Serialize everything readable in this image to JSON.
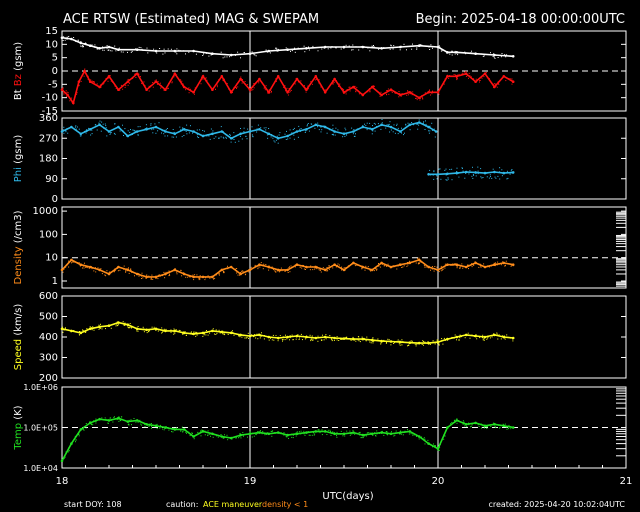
{
  "chart_data": {
    "type": "line",
    "title": "ACE RTSW (Estimated) MAG & SWEPAM",
    "begin_label": "Begin: 2025-04-18 00:00:00UTC",
    "xlabel": "UTC(days)",
    "x_ticks": [
      "18",
      "19",
      "20",
      "21"
    ],
    "xlim": [
      18,
      21
    ],
    "footer": {
      "start_doy": "start DOY: 108",
      "caution": "caution:",
      "ace_maneuver": "ACE maneuver",
      "density_note": "density < 1",
      "created": "created: 2025-04-20 10:02:04UTC"
    },
    "colors": {
      "bt": "#ffffff",
      "bz": "#ff1010",
      "phi": "#2fb8e8",
      "density": "#ff8c1a",
      "speed": "#ffff20",
      "temp": "#20e020",
      "maneuver": "#ffff20",
      "density_note": "#ff8c1a"
    },
    "panels": [
      {
        "key": "mag",
        "ylabel_parts": [
          {
            "text": "Bt",
            "color": "#ffffff"
          },
          {
            "text": " ",
            "color": "#ffffff"
          },
          {
            "text": "Bz",
            "color": "#ff1010"
          },
          {
            "text": " (gsm)",
            "color": "#ffffff"
          }
        ],
        "ylim": [
          -15,
          15
        ],
        "scale": "linear",
        "tick_labels": [
          "15",
          "10",
          "5",
          "0",
          "-5",
          "-10",
          "-15"
        ],
        "tick_values": [
          15,
          10,
          5,
          0,
          -5,
          -10,
          -15
        ],
        "dashed_ref": 0,
        "series": [
          {
            "name": "Bt",
            "color": "#ffffff",
            "x": [
              18.0,
              18.05,
              18.1,
              18.15,
              18.2,
              18.25,
              18.3,
              18.4,
              18.5,
              18.6,
              18.7,
              18.8,
              18.9,
              19.0,
              19.1,
              19.2,
              19.3,
              19.4,
              19.5,
              19.6,
              19.7,
              19.8,
              19.9,
              20.0,
              20.05,
              20.1,
              20.2,
              20.3,
              20.4
            ],
            "y": [
              12.5,
              12,
              10.5,
              9.5,
              8.5,
              9,
              8,
              8,
              7.5,
              7.5,
              7.5,
              6.5,
              6,
              6.5,
              7.5,
              8,
              8.5,
              9,
              9,
              9,
              8.5,
              9,
              9.5,
              9,
              7,
              7,
              6.5,
              6,
              5.5
            ]
          },
          {
            "name": "Bz",
            "color": "#ff1010",
            "x": [
              18.0,
              18.03,
              18.06,
              18.09,
              18.12,
              18.15,
              18.2,
              18.25,
              18.3,
              18.35,
              18.4,
              18.45,
              18.5,
              18.55,
              18.6,
              18.65,
              18.7,
              18.75,
              18.8,
              18.85,
              18.9,
              18.95,
              19.0,
              19.05,
              19.1,
              19.15,
              19.2,
              19.25,
              19.3,
              19.35,
              19.4,
              19.45,
              19.5,
              19.55,
              19.6,
              19.65,
              19.7,
              19.75,
              19.8,
              19.85,
              19.9,
              19.95,
              20.0,
              20.05,
              20.1,
              20.15,
              20.2,
              20.25,
              20.3,
              20.35,
              20.4
            ],
            "y": [
              -7,
              -9,
              -12,
              -4,
              0,
              -4,
              -6,
              -2,
              -7,
              -4,
              -1,
              -7,
              -4,
              -7,
              -1,
              -6,
              -8,
              -2,
              -7,
              -2,
              -8,
              -3,
              -7,
              -3,
              -8,
              -2,
              -8,
              -3,
              -7,
              -2,
              -8,
              -3,
              -8,
              -6,
              -9,
              -6,
              -9,
              -7,
              -9,
              -8,
              -10,
              -8,
              -8,
              -2,
              -2,
              -1,
              -4,
              -1,
              -6,
              -2,
              -4
            ]
          }
        ]
      },
      {
        "key": "phi",
        "ylabel_parts": [
          {
            "text": "Phi",
            "color": "#2fb8e8"
          },
          {
            "text": " (gsm)",
            "color": "#ffffff"
          }
        ],
        "ylim": [
          0,
          360
        ],
        "scale": "linear",
        "tick_labels": [
          "360",
          "270",
          "180",
          "90",
          "0"
        ],
        "tick_values": [
          360,
          270,
          180,
          90,
          0
        ],
        "series": [
          {
            "name": "Phi",
            "color": "#2fb8e8",
            "x": [
              18.0,
              18.05,
              18.1,
              18.15,
              18.2,
              18.25,
              18.3,
              18.35,
              18.4,
              18.45,
              18.5,
              18.55,
              18.6,
              18.65,
              18.7,
              18.75,
              18.8,
              18.85,
              18.9,
              18.95,
              19.0,
              19.05,
              19.1,
              19.15,
              19.2,
              19.25,
              19.3,
              19.35,
              19.4,
              19.45,
              19.5,
              19.55,
              19.6,
              19.65,
              19.7,
              19.75,
              19.8,
              19.85,
              19.9,
              19.95,
              19.99
            ],
            "y": [
              300,
              320,
              290,
              310,
              330,
              300,
              320,
              280,
              300,
              310,
              320,
              300,
              290,
              310,
              300,
              280,
              290,
              300,
              270,
              290,
              300,
              310,
              290,
              270,
              280,
              300,
              310,
              330,
              320,
              300,
              290,
              300,
              320,
              310,
              330,
              320,
              300,
              330,
              340,
              320,
              300
            ]
          },
          {
            "name": "Phi-late",
            "color": "#2fb8e8",
            "x": [
              19.95,
              20.0,
              20.05,
              20.1,
              20.15,
              20.2,
              20.25,
              20.3,
              20.35,
              20.4
            ],
            "y": [
              110,
              110,
              112,
              115,
              120,
              118,
              115,
              120,
              115,
              118
            ]
          }
        ]
      },
      {
        "key": "density",
        "ylabel_parts": [
          {
            "text": "Density",
            "color": "#ff8c1a"
          },
          {
            "text": " (/cm3)",
            "color": "#ffffff"
          }
        ],
        "ylim": [
          0.5,
          1500
        ],
        "scale": "log",
        "tick_labels": [
          "1000",
          "100",
          "10",
          "1"
        ],
        "tick_values": [
          1000,
          100,
          10,
          1
        ],
        "dashed_ref": 10,
        "series": [
          {
            "name": "Density",
            "color": "#ff8c1a",
            "x": [
              18.0,
              18.05,
              18.1,
              18.15,
              18.2,
              18.25,
              18.3,
              18.35,
              18.4,
              18.45,
              18.5,
              18.55,
              18.6,
              18.65,
              18.7,
              18.75,
              18.8,
              18.85,
              18.9,
              18.95,
              19.0,
              19.05,
              19.1,
              19.15,
              19.2,
              19.25,
              19.3,
              19.35,
              19.4,
              19.45,
              19.5,
              19.55,
              19.6,
              19.65,
              19.7,
              19.75,
              19.8,
              19.85,
              19.9,
              19.95,
              20.0,
              20.05,
              20.1,
              20.15,
              20.2,
              20.25,
              20.3,
              20.35,
              20.4
            ],
            "y": [
              3,
              8,
              5,
              4,
              3,
              2,
              4,
              3,
              2,
              1.5,
              1.5,
              2,
              3,
              2,
              1.5,
              1.5,
              1.5,
              3,
              4,
              2,
              3,
              5,
              4,
              3,
              3,
              5,
              4,
              4,
              3,
              5,
              3,
              6,
              4,
              3,
              6,
              4,
              5,
              6,
              8,
              4,
              3,
              5,
              5,
              4,
              6,
              4,
              5,
              6,
              5
            ]
          }
        ]
      },
      {
        "key": "speed",
        "ylabel_parts": [
          {
            "text": "Speed",
            "color": "#ffff20"
          },
          {
            "text": " (km/s)",
            "color": "#ffffff"
          }
        ],
        "ylim": [
          200,
          600
        ],
        "scale": "linear",
        "tick_labels": [
          "600",
          "500",
          "400",
          "300",
          "200"
        ],
        "tick_values": [
          600,
          500,
          400,
          300,
          200
        ],
        "series": [
          {
            "name": "Speed",
            "color": "#ffff20",
            "x": [
              18.0,
              18.05,
              18.1,
              18.15,
              18.2,
              18.25,
              18.3,
              18.35,
              18.4,
              18.45,
              18.5,
              18.55,
              18.6,
              18.65,
              18.7,
              18.75,
              18.8,
              18.85,
              18.9,
              18.95,
              19.0,
              19.05,
              19.1,
              19.15,
              19.2,
              19.25,
              19.3,
              19.35,
              19.4,
              19.45,
              19.5,
              19.55,
              19.6,
              19.65,
              19.7,
              19.75,
              19.8,
              19.85,
              19.9,
              19.95,
              20.0,
              20.05,
              20.1,
              20.15,
              20.2,
              20.25,
              20.3,
              20.35,
              20.4
            ],
            "y": [
              440,
              430,
              420,
              440,
              450,
              455,
              470,
              460,
              440,
              435,
              440,
              430,
              430,
              420,
              415,
              420,
              430,
              425,
              420,
              410,
              405,
              410,
              400,
              395,
              400,
              405,
              400,
              395,
              400,
              395,
              392,
              390,
              390,
              385,
              380,
              378,
              375,
              372,
              370,
              370,
              375,
              390,
              400,
              410,
              405,
              400,
              410,
              400,
              395
            ]
          }
        ]
      },
      {
        "key": "temp",
        "ylabel_parts": [
          {
            "text": "Temp",
            "color": "#20e020"
          },
          {
            "text": " (K)",
            "color": "#ffffff"
          }
        ],
        "ylim": [
          10000,
          1000000
        ],
        "scale": "log",
        "tick_labels": [
          "1.0E+06",
          "1.0E+05",
          "1.0E+04"
        ],
        "tick_values": [
          1000000,
          100000,
          10000
        ],
        "dashed_ref": 100000,
        "series": [
          {
            "name": "Temp",
            "color": "#20e020",
            "x": [
              18.0,
              18.05,
              18.1,
              18.15,
              18.2,
              18.25,
              18.3,
              18.35,
              18.4,
              18.45,
              18.5,
              18.55,
              18.6,
              18.65,
              18.7,
              18.75,
              18.8,
              18.85,
              18.9,
              18.95,
              19.0,
              19.05,
              19.1,
              19.15,
              19.2,
              19.25,
              19.3,
              19.35,
              19.4,
              19.45,
              19.5,
              19.55,
              19.6,
              19.65,
              19.7,
              19.75,
              19.8,
              19.85,
              19.9,
              19.95,
              20.0,
              20.05,
              20.1,
              20.15,
              20.2,
              20.25,
              20.3,
              20.35,
              20.4
            ],
            "y": [
              15000,
              40000,
              90000,
              130000,
              160000,
              150000,
              170000,
              140000,
              150000,
              120000,
              110000,
              100000,
              90000,
              90000,
              60000,
              80000,
              70000,
              60000,
              55000,
              65000,
              70000,
              75000,
              70000,
              75000,
              65000,
              70000,
              75000,
              80000,
              80000,
              70000,
              70000,
              75000,
              65000,
              70000,
              75000,
              70000,
              75000,
              80000,
              60000,
              40000,
              30000,
              100000,
              150000,
              120000,
              130000,
              110000,
              120000,
              110000,
              100000
            ]
          }
        ]
      }
    ]
  }
}
